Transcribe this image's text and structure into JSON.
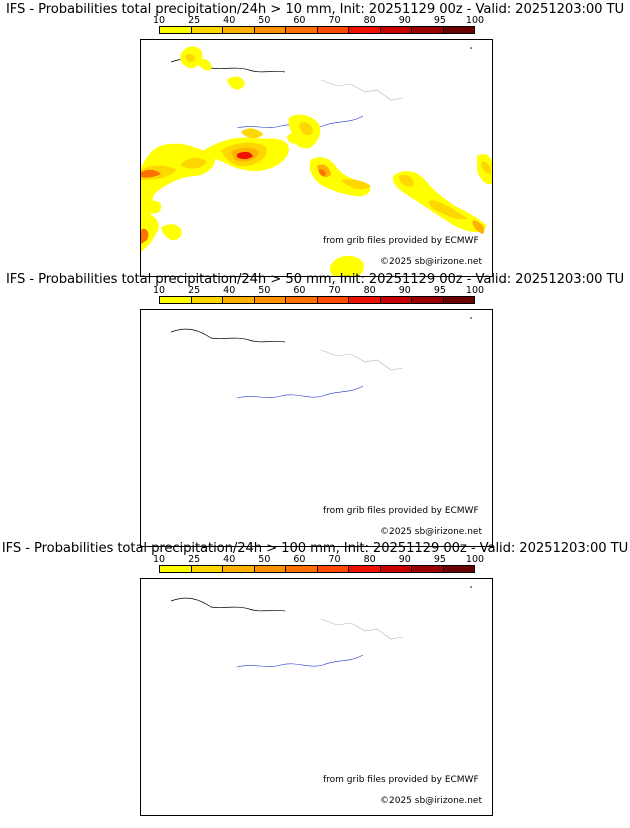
{
  "colorbar": {
    "ticks": [
      "10",
      "25",
      "40",
      "50",
      "60",
      "70",
      "80",
      "90",
      "95",
      "100"
    ],
    "colors": [
      "#ffff00",
      "#ffd700",
      "#ffb000",
      "#ff9000",
      "#ff7000",
      "#ff4a00",
      "#ee1000",
      "#c80000",
      "#9a0000",
      "#6a0000"
    ]
  },
  "credits": {
    "source": "from grib files provided by ECMWF",
    "copyright": "©2025 sb@irizone.net"
  },
  "panels": [
    {
      "title": "IFS - Probabilities total precipitation/24h > 10 mm, Init: 20251129 00z - Valid: 20251203:00 TU"
    },
    {
      "title": "IFS - Probabilities total precipitation/24h > 50 mm, Init: 20251129 00z - Valid: 20251203:00 TU"
    },
    {
      "title": "IFS - Probabilities total precipitation/24h > 100 mm, Init: 20251129 00z - Valid: 20251203:00 TU"
    }
  ]
}
